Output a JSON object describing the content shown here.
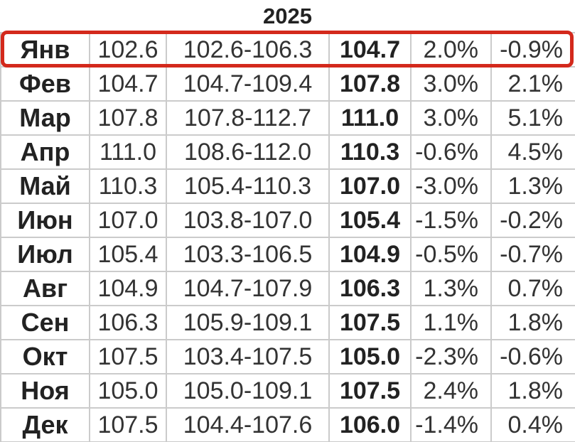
{
  "title": "2025",
  "highlight": {
    "row_index": 0,
    "row_label": "Янв",
    "color": "#d3291c"
  },
  "colors": {
    "background": "#ffffff",
    "border": "#cbcbcb",
    "text": "#333333",
    "text_strong": "#222222",
    "highlight": "#d3291c"
  },
  "chart_data": {
    "type": "table",
    "title": "2025",
    "rows": [
      [
        "Янв",
        "102.6",
        "102.6-106.3",
        "104.7",
        "2.0%",
        "-0.9%"
      ],
      [
        "Фев",
        "104.7",
        "104.7-109.4",
        "107.8",
        "3.0%",
        "2.1%"
      ],
      [
        "Мар",
        "107.8",
        "107.8-112.7",
        "111.0",
        "3.0%",
        "5.1%"
      ],
      [
        "Апр",
        "111.0",
        "108.6-112.0",
        "110.3",
        "-0.6%",
        "4.5%"
      ],
      [
        "Май",
        "110.3",
        "105.4-110.3",
        "107.0",
        "-3.0%",
        "1.3%"
      ],
      [
        "Июн",
        "107.0",
        "103.8-107.0",
        "105.4",
        "-1.5%",
        "-0.2%"
      ],
      [
        "Июл",
        "105.4",
        "103.3-106.5",
        "104.9",
        "-0.5%",
        "-0.7%"
      ],
      [
        "Авг",
        "104.9",
        "104.7-107.9",
        "106.3",
        "1.3%",
        "0.7%"
      ],
      [
        "Сен",
        "106.3",
        "105.9-109.1",
        "107.5",
        "1.1%",
        "1.8%"
      ],
      [
        "Окт",
        "107.5",
        "103.4-107.5",
        "105.0",
        "-2.3%",
        "-0.6%"
      ],
      [
        "Ноя",
        "105.0",
        "105.0-109.1",
        "107.5",
        "2.4%",
        "1.8%"
      ],
      [
        "Дек",
        "107.5",
        "104.4-107.6",
        "106.0",
        "-1.4%",
        "0.4%"
      ]
    ]
  }
}
